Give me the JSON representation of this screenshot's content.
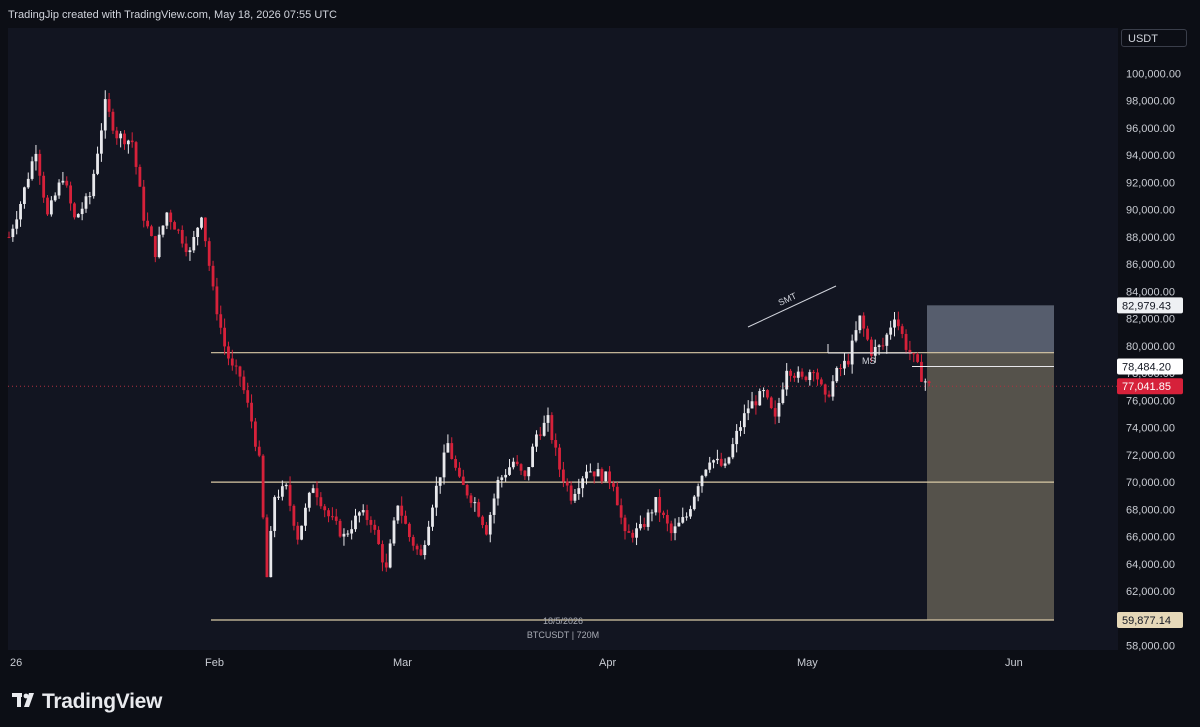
{
  "header": {
    "text": "TradingJip created with TradingView.com, May 18, 2026 07:55 UTC"
  },
  "brand": {
    "name": "TradingView"
  },
  "chart_data": {
    "type": "candlestick",
    "symbol": "BTCUSDT",
    "interval": "720M",
    "watermark_date": "18/5/2026",
    "watermark_symbol": "BTCUSDT | 720M",
    "currency": "USDT",
    "ylim": [
      57000,
      101300
    ],
    "y_ticks": [
      "100,000.00",
      "98,000.00",
      "96,000.00",
      "94,000.00",
      "92,000.00",
      "90,000.00",
      "88,000.00",
      "86,000.00",
      "84,000.00",
      "82,000.00",
      "80,000.00",
      "78,000.00",
      "76,000.00",
      "74,000.00",
      "72,000.00",
      "70,000.00",
      "68,000.00",
      "66,000.00",
      "64,000.00",
      "62,000.00",
      "60,000.00",
      "58,000.00"
    ],
    "x_ticks": [
      "26",
      "Feb",
      "Mar",
      "Apr",
      "May",
      "Jun"
    ],
    "price_badges": [
      {
        "label": "82,979.43",
        "value": 82979.43
      },
      {
        "label": "78,484.20",
        "value": 78484.2
      },
      {
        "label": "77,041.85",
        "value": 77041.85,
        "current": true
      },
      {
        "label": "59,877.14",
        "value": 59877.14
      }
    ],
    "levels": [
      79500,
      70000,
      59877.14
    ],
    "annotations": {
      "smt": "SMT",
      "ms": "MS"
    },
    "short_position": {
      "entry": 79500,
      "stop": 82979.43,
      "target": 59877.14
    },
    "price_path": [
      {
        "t": 0,
        "p": 88000
      },
      {
        "t": 3,
        "p": 90500
      },
      {
        "t": 7,
        "p": 94500
      },
      {
        "t": 10,
        "p": 89500
      },
      {
        "t": 14,
        "p": 92500
      },
      {
        "t": 17,
        "p": 89300
      },
      {
        "t": 21,
        "p": 91000
      },
      {
        "t": 25,
        "p": 97700
      },
      {
        "t": 28,
        "p": 95500
      },
      {
        "t": 32,
        "p": 95000
      },
      {
        "t": 35,
        "p": 89500
      },
      {
        "t": 38,
        "p": 86900
      },
      {
        "t": 41,
        "p": 89800
      },
      {
        "t": 44,
        "p": 88400
      },
      {
        "t": 47,
        "p": 86800
      },
      {
        "t": 50,
        "p": 89800
      },
      {
        "t": 53,
        "p": 84000
      },
      {
        "t": 56,
        "p": 80000
      },
      {
        "t": 58,
        "p": 78300
      },
      {
        "t": 60,
        "p": 77800
      },
      {
        "t": 63,
        "p": 74500
      },
      {
        "t": 65,
        "p": 71500
      },
      {
        "t": 67,
        "p": 63000
      },
      {
        "t": 69,
        "p": 69000
      },
      {
        "t": 72,
        "p": 69500
      },
      {
        "t": 75,
        "p": 66000
      },
      {
        "t": 79,
        "p": 69800
      },
      {
        "t": 83,
        "p": 67500
      },
      {
        "t": 87,
        "p": 66000
      },
      {
        "t": 91,
        "p": 67700
      },
      {
        "t": 94,
        "p": 67200
      },
      {
        "t": 98,
        "p": 63500
      },
      {
        "t": 101,
        "p": 68500
      },
      {
        "t": 104,
        "p": 66000
      },
      {
        "t": 107,
        "p": 64500
      },
      {
        "t": 110,
        "p": 68500
      },
      {
        "t": 114,
        "p": 72800
      },
      {
        "t": 117,
        "p": 70000
      },
      {
        "t": 121,
        "p": 68500
      },
      {
        "t": 124,
        "p": 66500
      },
      {
        "t": 127,
        "p": 70000
      },
      {
        "t": 131,
        "p": 71500
      },
      {
        "t": 134,
        "p": 70200
      },
      {
        "t": 137,
        "p": 73500
      },
      {
        "t": 140,
        "p": 74500
      },
      {
        "t": 143,
        "p": 71000
      },
      {
        "t": 146,
        "p": 69000
      },
      {
        "t": 150,
        "p": 71000
      },
      {
        "t": 154,
        "p": 70500
      },
      {
        "t": 157,
        "p": 70000
      },
      {
        "t": 160,
        "p": 66000
      },
      {
        "t": 164,
        "p": 66500
      },
      {
        "t": 168,
        "p": 68500
      },
      {
        "t": 172,
        "p": 66200
      },
      {
        "t": 176,
        "p": 67500
      },
      {
        "t": 179,
        "p": 70000
      },
      {
        "t": 182,
        "p": 71800
      },
      {
        "t": 186,
        "p": 71000
      },
      {
        "t": 189,
        "p": 73500
      },
      {
        "t": 192,
        "p": 75500
      },
      {
        "t": 196,
        "p": 76500
      },
      {
        "t": 199,
        "p": 74500
      },
      {
        "t": 202,
        "p": 78500
      },
      {
        "t": 206,
        "p": 77500
      },
      {
        "t": 209,
        "p": 78500
      },
      {
        "t": 212,
        "p": 76000
      },
      {
        "t": 215,
        "p": 78000
      },
      {
        "t": 218,
        "p": 79000
      },
      {
        "t": 221,
        "p": 82000
      },
      {
        "t": 224,
        "p": 79600
      },
      {
        "t": 227,
        "p": 80000
      },
      {
        "t": 230,
        "p": 82300
      },
      {
        "t": 233,
        "p": 80000
      },
      {
        "t": 235,
        "p": 79000
      },
      {
        "t": 237,
        "p": 77800
      },
      {
        "t": 239,
        "p": 77041.85
      }
    ]
  }
}
